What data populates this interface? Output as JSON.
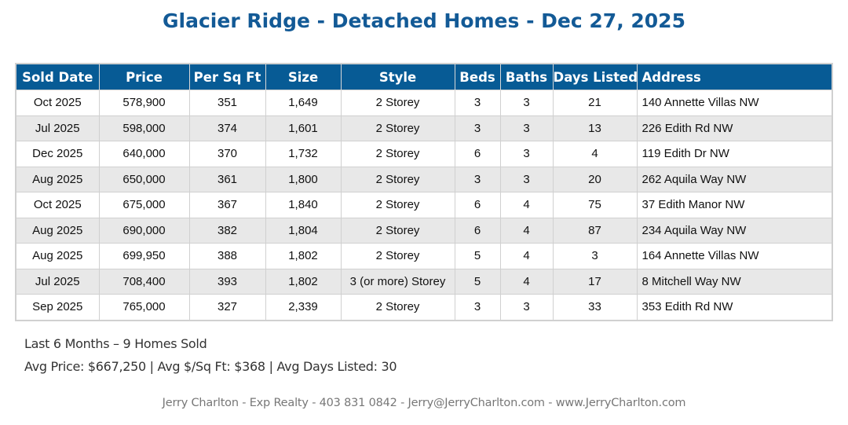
{
  "title": "Glacier Ridge - Detached Homes - Dec 27, 2025",
  "table": {
    "columns": [
      "Sold Date",
      "Price",
      "Per Sq Ft",
      "Size",
      "Style",
      "Beds",
      "Baths",
      "Days Listed",
      "Address"
    ],
    "rows": [
      [
        "Oct 2025",
        "578,900",
        "351",
        "1,649",
        "2 Storey",
        "3",
        "3",
        "21",
        "140 Annette Villas NW"
      ],
      [
        "Jul 2025",
        "598,000",
        "374",
        "1,601",
        "2 Storey",
        "3",
        "3",
        "13",
        "226 Edith Rd NW"
      ],
      [
        "Dec 2025",
        "640,000",
        "370",
        "1,732",
        "2 Storey",
        "6",
        "3",
        "4",
        "119 Edith Dr NW"
      ],
      [
        "Aug 2025",
        "650,000",
        "361",
        "1,800",
        "2 Storey",
        "3",
        "3",
        "20",
        "262 Aquila Way NW"
      ],
      [
        "Oct 2025",
        "675,000",
        "367",
        "1,840",
        "2 Storey",
        "6",
        "4",
        "75",
        "37 Edith Manor NW"
      ],
      [
        "Aug 2025",
        "690,000",
        "382",
        "1,804",
        "2 Storey",
        "6",
        "4",
        "87",
        "234 Aquila Way NW"
      ],
      [
        "Aug 2025",
        "699,950",
        "388",
        "1,802",
        "2 Storey",
        "5",
        "4",
        "3",
        "164 Annette Villas NW"
      ],
      [
        "Jul 2025",
        "708,400",
        "393",
        "1,802",
        "3 (or more) Storey",
        "5",
        "4",
        "17",
        "8 Mitchell Way NW"
      ],
      [
        "Sep 2025",
        "765,000",
        "327",
        "2,339",
        "2 Storey",
        "3",
        "3",
        "33",
        "353 Edith Rd NW"
      ]
    ]
  },
  "summary": {
    "line1": "Last 6 Months – 9 Homes Sold",
    "line2": "Avg Price: $667,250 | Avg $/Sq Ft: $368 | Avg Days Listed: 30"
  },
  "footer": "Jerry Charlton - Exp Realty - 403 831 0842 - Jerry@JerryCharlton.com - www.JerryCharlton.com",
  "colors": {
    "title": "#135a96",
    "header_bg": "#075b95",
    "alt_row": "#e8e8e8"
  }
}
